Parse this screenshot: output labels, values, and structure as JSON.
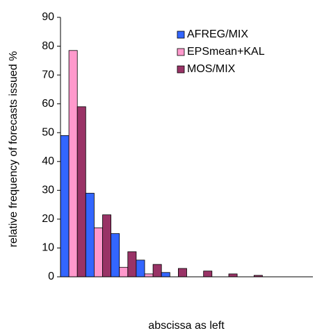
{
  "chart_data": {
    "type": "bar",
    "x_label": "abscissa as left",
    "y_label": "relative frequency of forecasts issued %",
    "categories": [
      null,
      null,
      null,
      null,
      null,
      null,
      null,
      null,
      null,
      null
    ],
    "series": [
      {
        "name": "AFREG/MIX",
        "color": "#3366ff",
        "values": [
          49,
          29,
          15,
          5.8,
          1.5,
          0,
          0,
          0,
          0,
          0
        ]
      },
      {
        "name": "EPSmean+KAL",
        "color": "#ff99cc",
        "values": [
          78.5,
          17,
          3.3,
          1,
          0,
          0,
          0,
          0,
          0,
          0
        ]
      },
      {
        "name": "MOS/MIX",
        "color": "#993366",
        "values": [
          59,
          21.5,
          8.7,
          4.3,
          2.9,
          2,
          1,
          0.5,
          0,
          0
        ]
      }
    ],
    "ylim": [
      0,
      90
    ],
    "yticks": [
      0,
      10,
      20,
      30,
      40,
      50,
      60,
      70,
      80,
      90
    ],
    "legend": "upper right"
  }
}
